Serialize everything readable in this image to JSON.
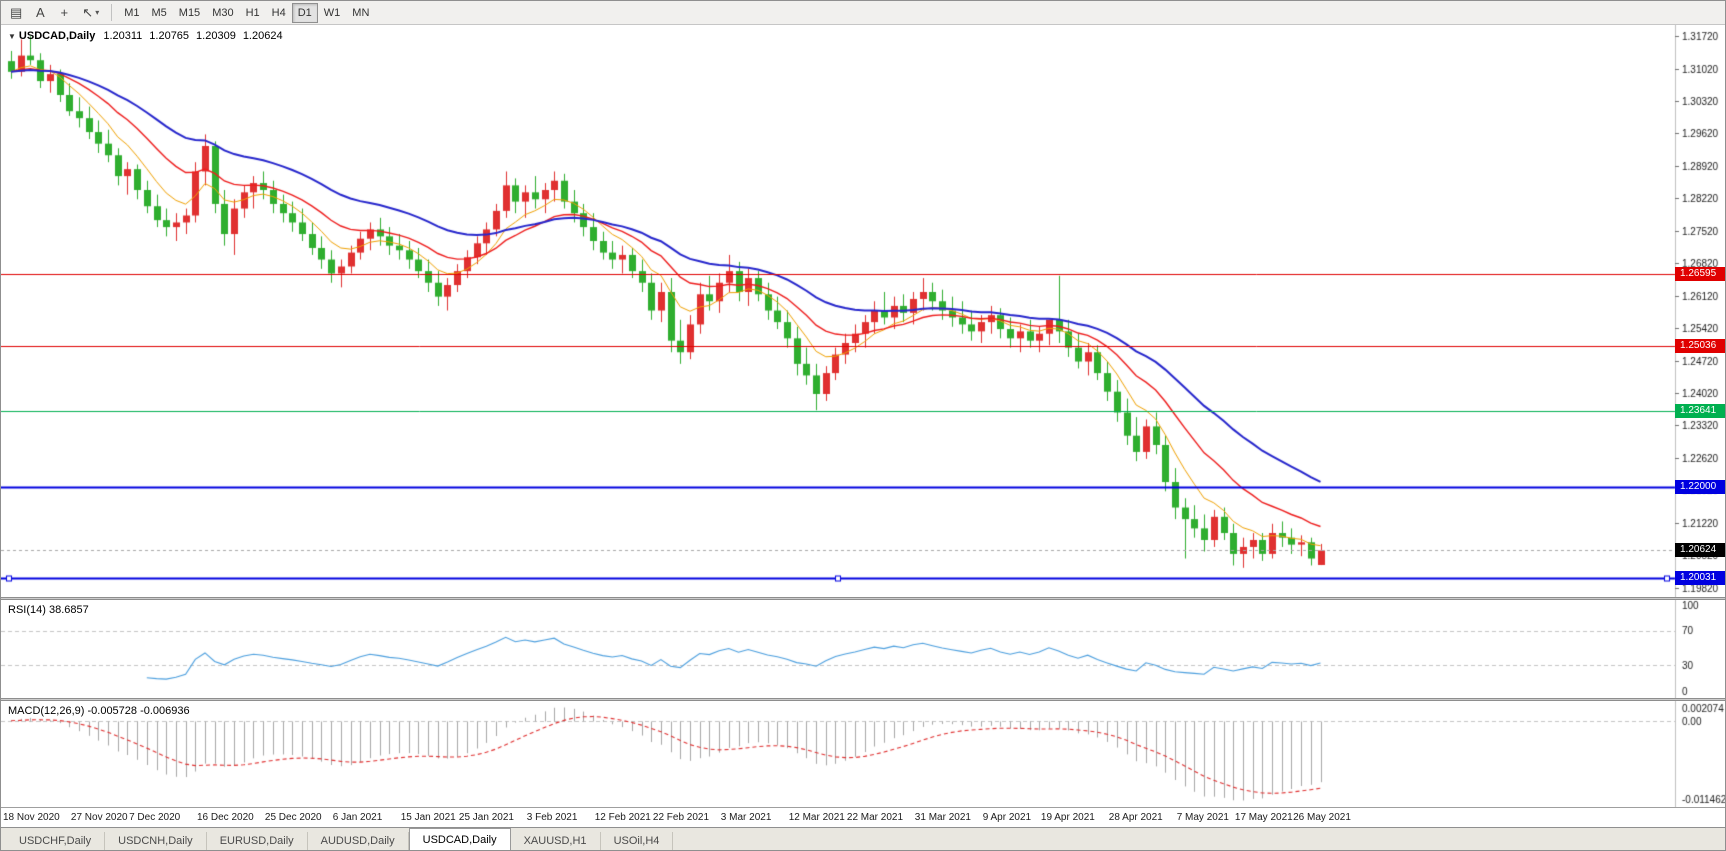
{
  "toolbar": {
    "icons": {
      "charts": "▤",
      "font": "A",
      "crosshair": "+",
      "draw": "↖",
      "caret": "▾"
    },
    "timeframes": [
      "M1",
      "M5",
      "M15",
      "M30",
      "H1",
      "H4",
      "D1",
      "W1",
      "MN"
    ],
    "active_timeframe": "D1"
  },
  "chart": {
    "collapse_icon": "▼",
    "symbol": "USDCAD,Daily",
    "ohlc": {
      "open": "1.20311",
      "high": "1.20765",
      "low": "1.20309",
      "close": "1.20624"
    }
  },
  "price_axis": {
    "ticks": [
      "1.31720",
      "1.31020",
      "1.30320",
      "1.29620",
      "1.28920",
      "1.28220",
      "1.27520",
      "1.26820",
      "1.26120",
      "1.25420",
      "1.24720",
      "1.24020",
      "1.23320",
      "1.22620",
      "1.21920",
      "1.21220",
      "1.20520",
      "1.19820"
    ]
  },
  "hlines": [
    {
      "price": 1.26595,
      "label": "1.26595",
      "color": "#e00000",
      "width": 1,
      "handles": false
    },
    {
      "price": 1.25036,
      "label": "1.25036",
      "color": "#e00000",
      "width": 1,
      "handles": false
    },
    {
      "price": 1.23641,
      "label": "1.23641",
      "color": "#00b050",
      "width": 1,
      "handles": false
    },
    {
      "price": 1.22,
      "label": "1.22000",
      "color": "#0000e0",
      "width": 2,
      "handles": false
    },
    {
      "price": 1.20031,
      "label": "1.20031",
      "color": "#0000e0",
      "width": 2,
      "handles": true
    }
  ],
  "current_price": {
    "value": 1.20624,
    "label": "1.20624"
  },
  "indicators": {
    "rsi": {
      "name": "RSI(14)",
      "value": "38.6857",
      "axis": [
        "100",
        "70",
        "30",
        "0"
      ],
      "levels": [
        70,
        30
      ]
    },
    "macd": {
      "name": "MACD(12,26,9)",
      "value": "-0.005728 -0.006936",
      "axis_top": "0.002074",
      "axis_zero": "0.00",
      "axis_bottom": "-0.011462"
    }
  },
  "tabs": [
    {
      "label": "USDCHF,Daily",
      "active": false
    },
    {
      "label": "USDCNH,Daily",
      "active": false
    },
    {
      "label": "EURUSD,Daily",
      "active": false
    },
    {
      "label": "AUDUSD,Daily",
      "active": false
    },
    {
      "label": "USDCAD,Daily",
      "active": true
    },
    {
      "label": "XAUUSD,H1",
      "active": false
    },
    {
      "label": "USOil,H4",
      "active": false
    }
  ],
  "chart_data": {
    "type": "candlestick",
    "symbol": "USDCAD",
    "timeframe": "Daily",
    "price_range": {
      "top": 1.3196,
      "bottom": 1.1962
    },
    "ma_periods": {
      "fast": 7,
      "medium": 15,
      "slow": 30
    },
    "colors": {
      "bull": "#e03030",
      "bear": "#2fae2f",
      "ma_fast": "#f0a000",
      "ma_medium": "#ee1c1c",
      "ma_slow": "#2626cc",
      "rsi": "#4a9ede",
      "macd_hist": "#a6a6a6",
      "macd_signal": "#e03030"
    },
    "candles": [
      [
        1.3118,
        1.314,
        1.308,
        1.3095
      ],
      [
        1.3095,
        1.3165,
        1.3085,
        1.313
      ],
      [
        1.313,
        1.3172,
        1.311,
        1.312
      ],
      [
        1.312,
        1.3135,
        1.306,
        1.3075
      ],
      [
        1.3075,
        1.311,
        1.305,
        1.309
      ],
      [
        1.309,
        1.31,
        1.303,
        1.3045
      ],
      [
        1.3045,
        1.307,
        1.3,
        1.301
      ],
      [
        1.301,
        1.304,
        1.2975,
        1.2995
      ],
      [
        1.2995,
        1.302,
        1.295,
        1.2965
      ],
      [
        1.2965,
        1.299,
        1.292,
        1.294
      ],
      [
        1.294,
        1.297,
        1.29,
        1.2915
      ],
      [
        1.2915,
        1.293,
        1.285,
        1.287
      ],
      [
        1.287,
        1.29,
        1.283,
        1.2885
      ],
      [
        1.2885,
        1.2895,
        1.282,
        1.284
      ],
      [
        1.284,
        1.286,
        1.279,
        1.2805
      ],
      [
        1.2805,
        1.283,
        1.276,
        1.2775
      ],
      [
        1.2775,
        1.28,
        1.274,
        1.276
      ],
      [
        1.276,
        1.279,
        1.273,
        1.277
      ],
      [
        1.277,
        1.28,
        1.2745,
        1.2785
      ],
      [
        1.2785,
        1.29,
        1.277,
        1.288
      ],
      [
        1.288,
        1.296,
        1.285,
        1.2935
      ],
      [
        1.2935,
        1.2945,
        1.279,
        1.281
      ],
      [
        1.281,
        1.284,
        1.272,
        1.2745
      ],
      [
        1.2745,
        1.282,
        1.27,
        1.28
      ],
      [
        1.28,
        1.285,
        1.278,
        1.2835
      ],
      [
        1.2835,
        1.287,
        1.28,
        1.2855
      ],
      [
        1.2855,
        1.288,
        1.282,
        1.284
      ],
      [
        1.284,
        1.286,
        1.279,
        1.281
      ],
      [
        1.281,
        1.283,
        1.277,
        1.279
      ],
      [
        1.279,
        1.2815,
        1.275,
        1.277
      ],
      [
        1.277,
        1.28,
        1.273,
        1.2745
      ],
      [
        1.2745,
        1.277,
        1.27,
        1.2715
      ],
      [
        1.2715,
        1.274,
        1.267,
        1.269
      ],
      [
        1.269,
        1.271,
        1.264,
        1.266
      ],
      [
        1.266,
        1.269,
        1.263,
        1.2675
      ],
      [
        1.2675,
        1.272,
        1.266,
        1.2705
      ],
      [
        1.2705,
        1.275,
        1.269,
        1.2735
      ],
      [
        1.2735,
        1.277,
        1.271,
        1.2755
      ],
      [
        1.2755,
        1.278,
        1.272,
        1.274
      ],
      [
        1.274,
        1.276,
        1.27,
        1.272
      ],
      [
        1.272,
        1.2745,
        1.269,
        1.271
      ],
      [
        1.271,
        1.273,
        1.267,
        1.269
      ],
      [
        1.269,
        1.2715,
        1.265,
        1.2665
      ],
      [
        1.2665,
        1.269,
        1.262,
        1.264
      ],
      [
        1.264,
        1.2665,
        1.259,
        1.261
      ],
      [
        1.261,
        1.265,
        1.258,
        1.2635
      ],
      [
        1.2635,
        1.268,
        1.262,
        1.2665
      ],
      [
        1.2665,
        1.271,
        1.265,
        1.2695
      ],
      [
        1.2695,
        1.274,
        1.268,
        1.2725
      ],
      [
        1.2725,
        1.277,
        1.27,
        1.2755
      ],
      [
        1.2755,
        1.281,
        1.274,
        1.2795
      ],
      [
        1.2795,
        1.288,
        1.278,
        1.285
      ],
      [
        1.285,
        1.2865,
        1.279,
        1.2815
      ],
      [
        1.2815,
        1.285,
        1.278,
        1.2835
      ],
      [
        1.2835,
        1.287,
        1.28,
        1.282
      ],
      [
        1.282,
        1.2855,
        1.279,
        1.284
      ],
      [
        1.284,
        1.288,
        1.2815,
        1.286
      ],
      [
        1.286,
        1.2875,
        1.28,
        1.2815
      ],
      [
        1.2815,
        1.284,
        1.277,
        1.279
      ],
      [
        1.279,
        1.281,
        1.274,
        1.276
      ],
      [
        1.276,
        1.279,
        1.271,
        1.273
      ],
      [
        1.273,
        1.275,
        1.269,
        1.2705
      ],
      [
        1.2705,
        1.273,
        1.267,
        1.269
      ],
      [
        1.269,
        1.272,
        1.266,
        1.27
      ],
      [
        1.27,
        1.2715,
        1.265,
        1.2665
      ],
      [
        1.2665,
        1.269,
        1.262,
        1.264
      ],
      [
        1.264,
        1.266,
        1.256,
        1.258
      ],
      [
        1.258,
        1.264,
        1.2555,
        1.262
      ],
      [
        1.262,
        1.265,
        1.249,
        1.2515
      ],
      [
        1.2515,
        1.256,
        1.2465,
        1.249
      ],
      [
        1.249,
        1.257,
        1.2475,
        1.255
      ],
      [
        1.255,
        1.264,
        1.253,
        1.2615
      ],
      [
        1.2615,
        1.2655,
        1.258,
        1.26
      ],
      [
        1.26,
        1.266,
        1.2575,
        1.264
      ],
      [
        1.264,
        1.27,
        1.262,
        1.2665
      ],
      [
        1.2665,
        1.2685,
        1.26,
        1.262
      ],
      [
        1.262,
        1.267,
        1.259,
        1.265
      ],
      [
        1.265,
        1.2665,
        1.26,
        1.2615
      ],
      [
        1.2615,
        1.264,
        1.256,
        1.258
      ],
      [
        1.258,
        1.261,
        1.254,
        1.2555
      ],
      [
        1.2555,
        1.258,
        1.25,
        1.252
      ],
      [
        1.252,
        1.2545,
        1.244,
        1.2465
      ],
      [
        1.2465,
        1.25,
        1.242,
        1.244
      ],
      [
        1.244,
        1.2465,
        1.2365,
        1.24
      ],
      [
        1.24,
        1.246,
        1.2385,
        1.2445
      ],
      [
        1.2445,
        1.25,
        1.243,
        1.2485
      ],
      [
        1.2485,
        1.253,
        1.2465,
        1.251
      ],
      [
        1.251,
        1.255,
        1.249,
        1.253
      ],
      [
        1.253,
        1.257,
        1.25,
        1.2555
      ],
      [
        1.2555,
        1.26,
        1.253,
        1.258
      ],
      [
        1.258,
        1.262,
        1.255,
        1.2565
      ],
      [
        1.2565,
        1.261,
        1.254,
        1.259
      ],
      [
        1.259,
        1.2615,
        1.2555,
        1.2575
      ],
      [
        1.2575,
        1.262,
        1.255,
        1.2605
      ],
      [
        1.2605,
        1.265,
        1.258,
        1.262
      ],
      [
        1.262,
        1.264,
        1.258,
        1.26
      ],
      [
        1.26,
        1.2625,
        1.256,
        1.258
      ],
      [
        1.258,
        1.261,
        1.2545,
        1.2565
      ],
      [
        1.2565,
        1.26,
        1.253,
        1.255
      ],
      [
        1.255,
        1.258,
        1.2515,
        1.2535
      ],
      [
        1.2535,
        1.257,
        1.251,
        1.2555
      ],
      [
        1.2555,
        1.259,
        1.253,
        1.257
      ],
      [
        1.257,
        1.2585,
        1.252,
        1.254
      ],
      [
        1.254,
        1.2565,
        1.25,
        1.252
      ],
      [
        1.252,
        1.255,
        1.249,
        1.2535
      ],
      [
        1.2535,
        1.256,
        1.25,
        1.2515
      ],
      [
        1.2515,
        1.2545,
        1.249,
        1.253
      ],
      [
        1.253,
        1.256,
        1.2505,
        1.256
      ],
      [
        1.256,
        1.2655,
        1.251,
        1.2535
      ],
      [
        1.2535,
        1.256,
        1.248,
        1.25
      ],
      [
        1.25,
        1.253,
        1.2455,
        1.247
      ],
      [
        1.247,
        1.251,
        1.244,
        1.249
      ],
      [
        1.249,
        1.2505,
        1.243,
        1.2445
      ],
      [
        1.2445,
        1.247,
        1.2385,
        1.2405
      ],
      [
        1.2405,
        1.243,
        1.234,
        1.236
      ],
      [
        1.236,
        1.239,
        1.229,
        1.231
      ],
      [
        1.231,
        1.235,
        1.2255,
        1.2275
      ],
      [
        1.2275,
        1.2345,
        1.226,
        1.233
      ],
      [
        1.233,
        1.236,
        1.227,
        1.229
      ],
      [
        1.229,
        1.231,
        1.219,
        1.221
      ],
      [
        1.221,
        1.224,
        1.213,
        1.2155
      ],
      [
        1.2155,
        1.2175,
        1.2045,
        1.213
      ],
      [
        1.213,
        1.216,
        1.209,
        1.211
      ],
      [
        1.211,
        1.214,
        1.206,
        1.2085
      ],
      [
        1.2085,
        1.215,
        1.207,
        1.2135
      ],
      [
        1.2135,
        1.2155,
        1.2085,
        1.21
      ],
      [
        1.21,
        1.212,
        1.203,
        1.2055
      ],
      [
        1.2055,
        1.209,
        1.2025,
        1.207
      ],
      [
        1.207,
        1.21,
        1.2045,
        1.2085
      ],
      [
        1.2085,
        1.21,
        1.204,
        1.2055
      ],
      [
        1.2055,
        1.212,
        1.2045,
        1.21
      ],
      [
        1.21,
        1.2125,
        1.207,
        1.209
      ],
      [
        1.209,
        1.211,
        1.2055,
        1.2075
      ],
      [
        1.2075,
        1.2095,
        1.205,
        1.208
      ],
      [
        1.208,
        1.209,
        1.203,
        1.2045
      ],
      [
        1.20311,
        1.20765,
        1.20309,
        1.20624
      ]
    ],
    "date_ticks": [
      {
        "label": "18 Nov 2020",
        "index": 0
      },
      {
        "label": "27 Nov 2020",
        "index": 7
      },
      {
        "label": "7 Dec 2020",
        "index": 13
      },
      {
        "label": "16 Dec 2020",
        "index": 20
      },
      {
        "label": "25 Dec 2020",
        "index": 27
      },
      {
        "label": "6 Jan 2021",
        "index": 34
      },
      {
        "label": "15 Jan 2021",
        "index": 41
      },
      {
        "label": "25 Jan 2021",
        "index": 47
      },
      {
        "label": "3 Feb 2021",
        "index": 54
      },
      {
        "label": "12 Feb 2021",
        "index": 61
      },
      {
        "label": "22 Feb 2021",
        "index": 67
      },
      {
        "label": "3 Mar 2021",
        "index": 74
      },
      {
        "label": "12 Mar 2021",
        "index": 81
      },
      {
        "label": "22 Mar 2021",
        "index": 87
      },
      {
        "label": "31 Mar 2021",
        "index": 94
      },
      {
        "label": "9 Apr 2021",
        "index": 101
      },
      {
        "label": "19 Apr 2021",
        "index": 107
      },
      {
        "label": "28 Apr 2021",
        "index": 114
      },
      {
        "label": "7 May 2021",
        "index": 121
      },
      {
        "label": "17 May 2021",
        "index": 127
      },
      {
        "label": "26 May 2021",
        "index": 133
      }
    ]
  }
}
